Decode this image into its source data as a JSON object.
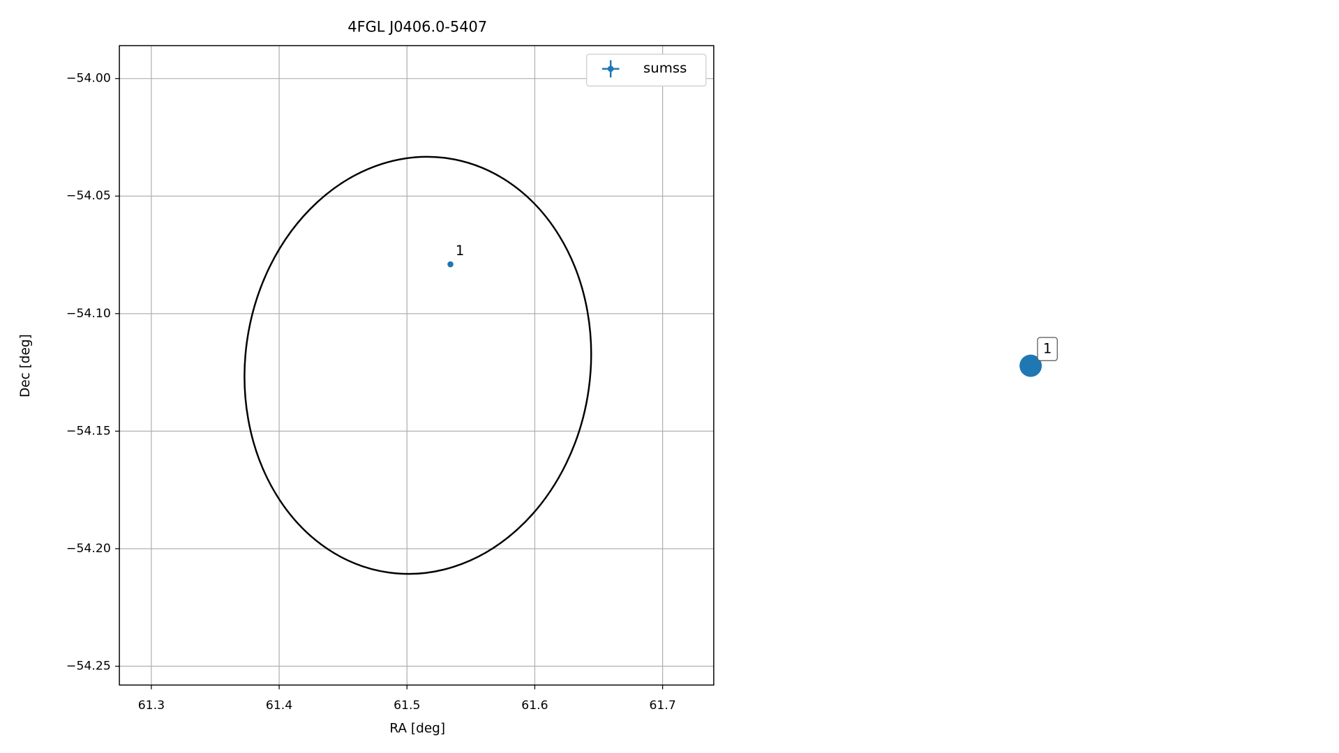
{
  "chart_data": [
    {
      "type": "scatter",
      "title": "4FGL J0406.0-5407",
      "x_label": "RA [deg]",
      "y_label": "Dec [deg]",
      "xlim": [
        61.275,
        61.74
      ],
      "ylim": [
        -54.258,
        -53.986
      ],
      "xticks": [
        61.3,
        61.4,
        61.5,
        61.6,
        61.7
      ],
      "yticks": [
        {
          "value": -54.0,
          "label": "−54.00"
        },
        {
          "value": -54.05,
          "label": "−54.05"
        },
        {
          "value": -54.1,
          "label": "−54.10"
        },
        {
          "value": -54.15,
          "label": "−54.15"
        },
        {
          "value": -54.2,
          "label": "−54.20"
        },
        {
          "value": -54.25,
          "label": "−54.25"
        }
      ],
      "grid": true,
      "legend": "upper right",
      "series": [
        {
          "name": "sumss",
          "color": "#1f77b4",
          "x": [
            61.534
          ],
          "y": [
            -54.079
          ],
          "point_labels": [
            "1"
          ]
        }
      ],
      "ellipse": {
        "center_ra": 61.5085,
        "center_dec": -54.122,
        "semi_ra": 0.135,
        "semi_dec": 0.089,
        "angle": 8,
        "color": "#000000"
      }
    },
    {
      "type": "marker",
      "point_labels": [
        "1"
      ],
      "color": "#1f77b4"
    }
  ]
}
